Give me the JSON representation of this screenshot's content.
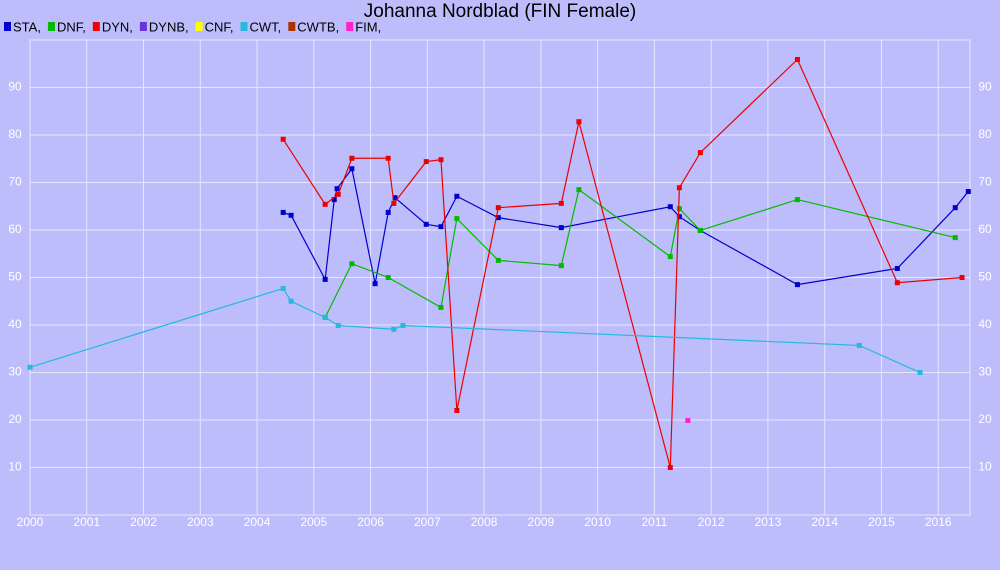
{
  "chart_data": {
    "type": "line",
    "title": "Johanna Nordblad (FIN Female)",
    "xlim": [
      2000,
      2016.56
    ],
    "xticks": [
      2000,
      2001,
      2002,
      2003,
      2004,
      2005,
      2006,
      2007,
      2008,
      2009,
      2010,
      2011,
      2012,
      2013,
      2014,
      2015,
      2016
    ],
    "ylim": [
      0,
      100
    ],
    "yticks": [
      10,
      20,
      30,
      40,
      50,
      60,
      70,
      80,
      90
    ],
    "grid": true,
    "series": [
      {
        "name": "STA,",
        "color": "#0000cc",
        "x": [
          2004.46,
          2004.6,
          2005.2,
          2005.36,
          2005.41,
          2005.67,
          2006.08,
          2006.31,
          2006.43,
          2006.98,
          2007.24,
          2007.52,
          2008.25,
          2009.36,
          2011.28,
          2011.44,
          2011.81,
          2013.52,
          2015.28,
          2016.3,
          2016.53
        ],
        "values": [
          63.7,
          63.1,
          49.6,
          66.4,
          68.7,
          72.9,
          48.7,
          63.7,
          66.8,
          61.2,
          60.7,
          67.1,
          62.6,
          60.5,
          64.9,
          62.8,
          59.9,
          48.5,
          51.9,
          64.7,
          68.1
        ]
      },
      {
        "name": "DNF,",
        "color": "#00bb00",
        "x": [
          2005.2,
          2005.67,
          2006.31,
          2007.24,
          2007.52,
          2008.25,
          2009.36,
          2009.67,
          2011.28,
          2011.44,
          2011.81,
          2013.52,
          2016.3
        ],
        "values": [
          41.6,
          52.9,
          50.0,
          43.7,
          62.4,
          53.6,
          52.5,
          68.5,
          54.4,
          64.5,
          59.9,
          66.4,
          58.4
        ]
      },
      {
        "name": "DYN,",
        "color": "#ee0000",
        "x": [
          2004.46,
          2005.2,
          2005.43,
          2005.67,
          2006.31,
          2006.41,
          2006.98,
          2007.24,
          2007.52,
          2008.25,
          2009.36,
          2009.67,
          2011.28,
          2011.44,
          2011.81,
          2013.52,
          2015.28,
          2016.42
        ],
        "values": [
          79.1,
          65.4,
          67.5,
          75.1,
          75.1,
          65.6,
          74.4,
          74.8,
          22.0,
          64.7,
          65.6,
          82.8,
          10,
          68.9,
          76.3,
          95.9,
          48.9,
          50
        ]
      },
      {
        "name": "DYNB,",
        "color": "#6633dd",
        "x": [],
        "values": []
      },
      {
        "name": "CNF,",
        "color": "#ffff00",
        "x": [],
        "values": []
      },
      {
        "name": "CWT,",
        "color": "#22bbdd",
        "x": [
          2000.0,
          2004.46,
          2004.6,
          2005.2,
          2005.43,
          2006.41,
          2006.57,
          2014.61,
          2015.68
        ],
        "values": [
          31.1,
          47.7,
          45.0,
          41.6,
          39.9,
          39.1,
          39.9,
          35.7,
          30.0
        ]
      },
      {
        "name": "CWTB,",
        "color": "#aa3300",
        "x": [],
        "values": []
      },
      {
        "name": "FIM,",
        "color": "#ff22cc",
        "x": [
          2011.59
        ],
        "values": [
          19.9
        ]
      }
    ]
  }
}
